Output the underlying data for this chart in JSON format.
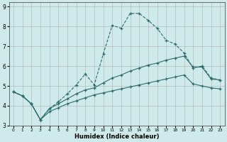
{
  "xlabel": "Humidex (Indice chaleur)",
  "background_color": "#ceeaea",
  "grid_color": "#b0b0b0",
  "line_color": "#2d6b6b",
  "xlim": [
    -0.5,
    23.5
  ],
  "ylim": [
    3,
    9.2
  ],
  "xticks": [
    0,
    1,
    2,
    3,
    4,
    5,
    6,
    7,
    8,
    9,
    10,
    11,
    12,
    13,
    14,
    15,
    16,
    17,
    18,
    19,
    20,
    21,
    22,
    23
  ],
  "yticks": [
    3,
    4,
    5,
    6,
    7,
    8,
    9
  ],
  "line1_x": [
    0,
    1,
    2,
    3,
    4,
    5,
    6,
    7,
    8,
    9,
    10,
    11,
    12,
    13,
    14,
    15,
    16,
    17,
    18,
    19,
    20,
    21,
    22,
    23
  ],
  "line1_y": [
    4.7,
    4.5,
    4.1,
    3.3,
    3.85,
    4.2,
    4.6,
    5.05,
    5.6,
    5.05,
    6.6,
    8.05,
    7.9,
    8.65,
    8.65,
    8.3,
    7.9,
    7.3,
    7.1,
    6.65,
    5.9,
    6.0,
    5.4,
    5.3
  ],
  "line2_x": [
    0,
    1,
    2,
    3,
    4,
    5,
    6,
    7,
    8,
    9,
    10,
    11,
    12,
    13,
    14,
    15,
    16,
    17,
    18,
    19,
    20,
    21,
    22,
    23
  ],
  "line2_y": [
    4.7,
    4.5,
    4.1,
    3.3,
    3.85,
    4.1,
    4.35,
    4.6,
    4.8,
    4.9,
    5.15,
    5.4,
    5.55,
    5.75,
    5.9,
    6.05,
    6.15,
    6.3,
    6.4,
    6.5,
    5.95,
    5.95,
    5.35,
    5.3
  ],
  "line3_x": [
    0,
    1,
    2,
    3,
    4,
    5,
    6,
    7,
    8,
    9,
    10,
    11,
    12,
    13,
    14,
    15,
    16,
    17,
    18,
    19,
    20,
    21,
    22,
    23
  ],
  "line3_y": [
    4.7,
    4.5,
    4.1,
    3.3,
    3.7,
    3.9,
    4.1,
    4.25,
    4.4,
    4.55,
    4.65,
    4.75,
    4.85,
    4.95,
    5.05,
    5.15,
    5.25,
    5.35,
    5.45,
    5.55,
    5.1,
    5.0,
    4.9,
    4.85
  ]
}
